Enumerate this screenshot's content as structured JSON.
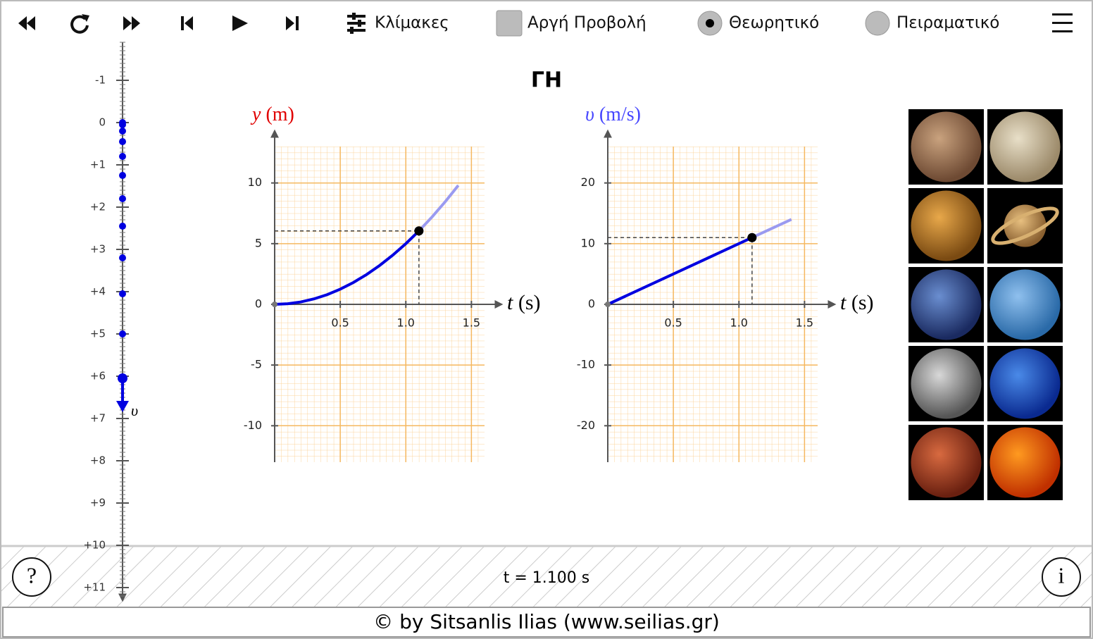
{
  "toolbar": {
    "scales": "Κλίμακες",
    "slow_motion": "Αργή Προβολή",
    "theoretical": "Θεωρητικό",
    "experimental": "Πειραματικό"
  },
  "title": "ΓΗ",
  "ruler": {
    "ylim": [
      -1.9,
      11.3
    ],
    "ticks": [
      -1,
      0,
      {
        "value": 1,
        "label": "+1"
      },
      {
        "value": 2,
        "label": "+2"
      },
      {
        "value": 3,
        "label": "+3"
      },
      {
        "value": 4,
        "label": "+4"
      },
      {
        "value": 5,
        "label": "+5"
      },
      {
        "value": 6,
        "label": "+6"
      },
      {
        "value": 7,
        "label": "+7"
      },
      {
        "value": 8,
        "label": "+8"
      },
      {
        "value": 9,
        "label": "+9"
      },
      {
        "value": 10,
        "label": "+10"
      },
      {
        "value": 11,
        "label": "+11"
      }
    ],
    "positions": [
      0,
      0.05,
      0.2,
      0.45,
      0.8,
      1.25,
      1.8,
      2.45,
      3.2,
      4.05,
      5,
      6.05
    ],
    "vector_label": "υ"
  },
  "chart_data": [
    {
      "type": "line",
      "ylabel": {
        "symbol": "y",
        "unit": "(m)"
      },
      "ylabel_color": "#e00000",
      "xlabel": {
        "symbol": "t",
        "unit": "(s)"
      },
      "xlim": [
        0,
        1.6
      ],
      "ylim": [
        -13,
        13
      ],
      "xticks": [
        0.5,
        {
          "value": 1,
          "label": "1.0"
        },
        1.5
      ],
      "yticks": [
        -10,
        -5,
        0,
        5,
        10
      ],
      "x": [
        0,
        0.1,
        0.2,
        0.3,
        0.4,
        0.5,
        0.6,
        0.7,
        0.8,
        0.9,
        1.0,
        1.1,
        1.2,
        1.3,
        1.4
      ],
      "series": [
        {
          "color": "#0000e0",
          "values": [
            0,
            0.05,
            0.2,
            0.45,
            0.8,
            1.25,
            1.8,
            2.45,
            3.2,
            4.05,
            5,
            6.05,
            null,
            null,
            null
          ]
        },
        {
          "color": "#9a9af0",
          "values": [
            null,
            null,
            null,
            null,
            null,
            null,
            null,
            null,
            null,
            null,
            null,
            6.05,
            7.2,
            8.45,
            9.8
          ]
        }
      ],
      "marker": {
        "x": 1.1,
        "y": 6.05
      }
    },
    {
      "type": "line",
      "ylabel": {
        "symbol": "υ",
        "unit": "(m/s)"
      },
      "ylabel_color": "#4646ff",
      "xlabel": {
        "symbol": "t",
        "unit": "(s)"
      },
      "xlim": [
        0,
        1.6
      ],
      "ylim": [
        -26,
        26
      ],
      "xticks": [
        0.5,
        {
          "value": 1,
          "label": "1.0"
        },
        1.5
      ],
      "yticks": [
        -20,
        -10,
        0,
        10,
        20
      ],
      "x": [
        0,
        1.1,
        1.4
      ],
      "series": [
        {
          "color": "#0000e0",
          "values": [
            0,
            11,
            null
          ]
        },
        {
          "color": "#9a9af0",
          "values": [
            null,
            11,
            14
          ]
        }
      ],
      "marker": {
        "x": 1.1,
        "y": 11
      }
    }
  ],
  "status": {
    "time": "t = 1.100 s",
    "help": "?",
    "info": "i"
  },
  "footer": "© by Sitsanlis Ilias (www.seilias.gr)"
}
